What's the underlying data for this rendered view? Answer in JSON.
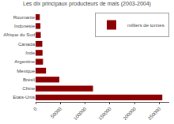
{
  "chart_data": {
    "type": "bar",
    "orientation": "horizontal",
    "title": "Les dix principaux producteurs de maïs (2003-2004)",
    "categories": [
      "Etats-Unis",
      "Chine",
      "Brésil",
      "Mexique",
      "Argentine",
      "Inde",
      "Canada",
      "Afrique du Sud",
      "Indonésie",
      "Roumanie"
    ],
    "series": [
      {
        "name": "milliers de tonnes",
        "color": "#8B0000",
        "values": [
          256000,
          116000,
          48000,
          21000,
          15000,
          14000,
          13500,
          10500,
          9800,
          8500
        ]
      }
    ],
    "xlim": [
      0,
      270000
    ],
    "xticks": [
      0,
      50000,
      100000,
      150000,
      200000,
      250000
    ],
    "grid": false,
    "legend": "upper right"
  }
}
